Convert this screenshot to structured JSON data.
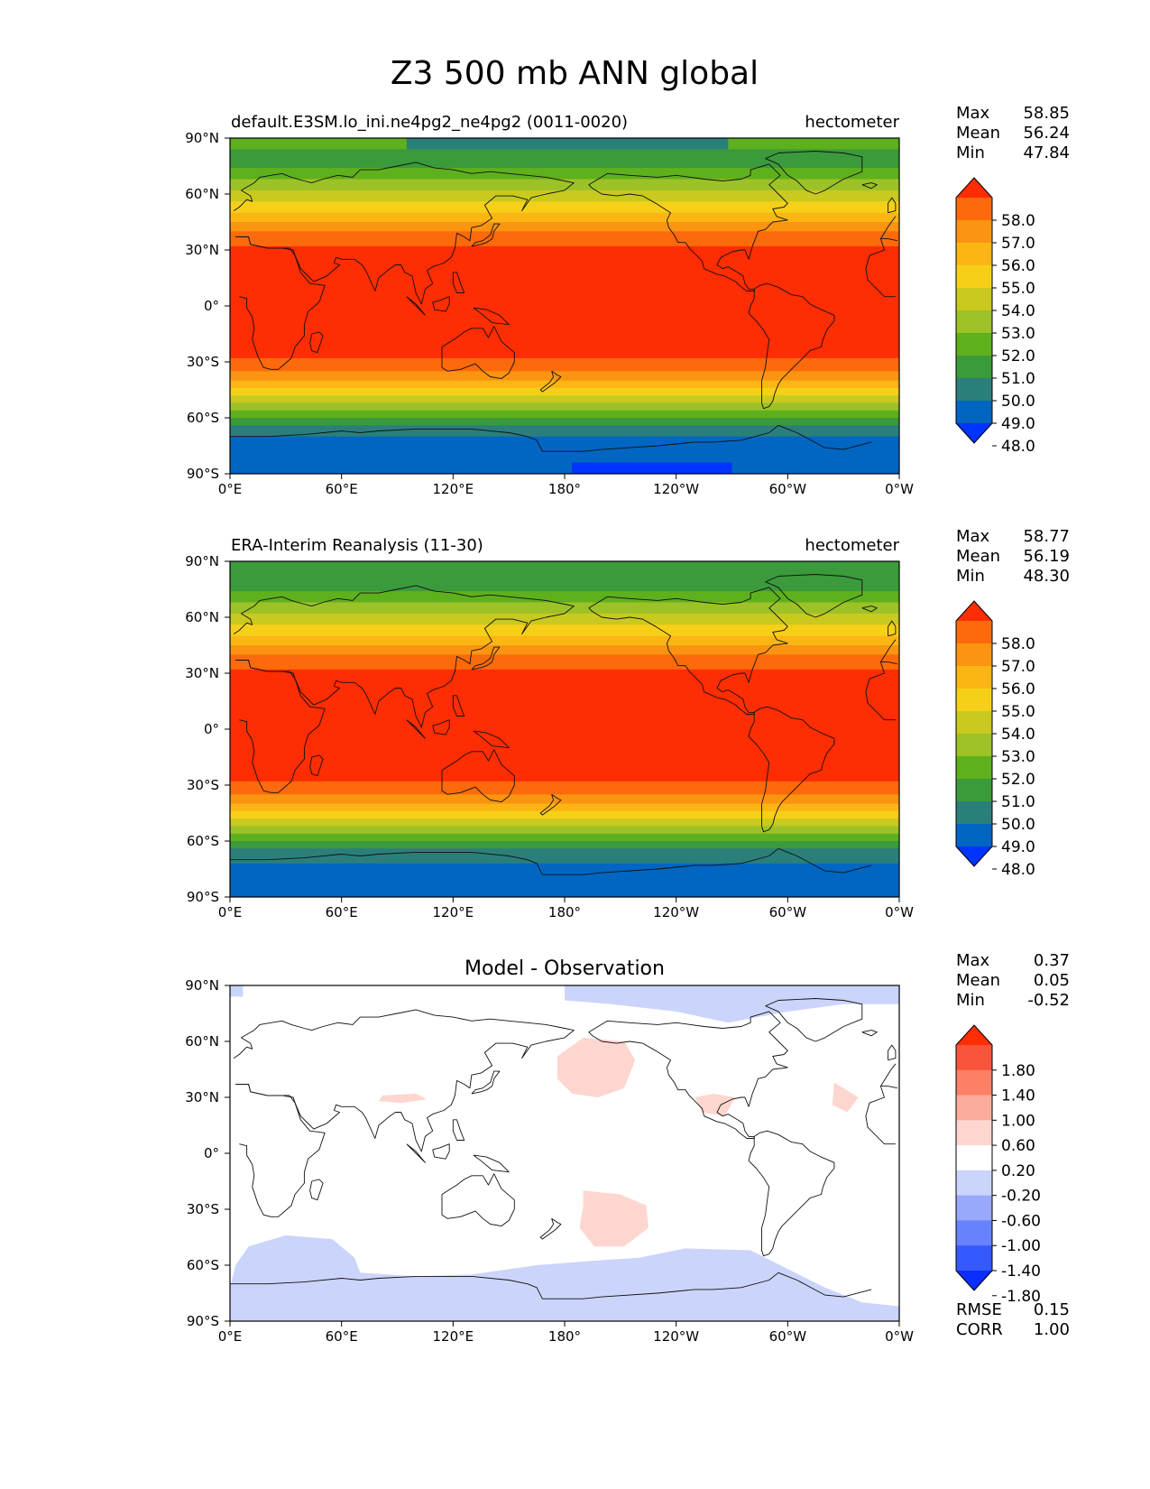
{
  "figure": {
    "title": "Z3 500 mb ANN global"
  },
  "colors": {
    "abs": [
      "#0033ff",
      "#0066c2",
      "#2b7f7b",
      "#3a9a3c",
      "#5fb01d",
      "#9cc227",
      "#c9c91f",
      "#f6d018",
      "#fcb614",
      "#fb9411",
      "#fc6a0b",
      "#ff2d03"
    ],
    "diff": [
      "#0a2eff",
      "#3659ff",
      "#6782fd",
      "#98a8fb",
      "#cbd4fa",
      "#ffffff",
      "#fdd6d0",
      "#fcac9d",
      "#fc8066",
      "#f8553c",
      "#ff2d03"
    ]
  },
  "chart_data": [
    {
      "type": "heatmap",
      "title": "default.E3SM.lo_ini.ne4pg2_ne4pg2 (0011-0020)",
      "units": "hectometer",
      "stats": {
        "labels": [
          "Max",
          "Mean",
          "Min"
        ],
        "values": [
          "58.85",
          "56.24",
          "47.84"
        ]
      },
      "colorbar_levels": [
        "58.0",
        "57.0",
        "56.0",
        "55.0",
        "54.0",
        "53.0",
        "52.0",
        "51.0",
        "50.0",
        "49.0",
        "48.0"
      ],
      "x_ticks": [
        "0°E",
        "60°E",
        "120°E",
        "180°",
        "120°W",
        "60°W",
        "0°W"
      ],
      "y_ticks": [
        "90°N",
        "60°N",
        "30°N",
        "0°",
        "30°S",
        "60°S",
        "90°S"
      ],
      "xlim": [
        0,
        360
      ],
      "ylim": [
        -90,
        90
      ],
      "bands": [
        {
          "lat_top": 90,
          "lat_bot": 84,
          "level": 4,
          "note": "teal 100E-90W"
        },
        {
          "lat_top": 84,
          "lat_bot": 74,
          "level": 3
        },
        {
          "lat_top": 74,
          "lat_bot": 68,
          "level": 4
        },
        {
          "lat_top": 68,
          "lat_bot": 62,
          "level": 5
        },
        {
          "lat_top": 62,
          "lat_bot": 56,
          "level": 6
        },
        {
          "lat_top": 56,
          "lat_bot": 50,
          "level": 7
        },
        {
          "lat_top": 50,
          "lat_bot": 45,
          "level": 8
        },
        {
          "lat_top": 45,
          "lat_bot": 40,
          "level": 9
        },
        {
          "lat_top": 40,
          "lat_bot": 32,
          "level": 10
        },
        {
          "lat_top": 32,
          "lat_bot": -28,
          "level": 11
        },
        {
          "lat_top": -28,
          "lat_bot": -35,
          "level": 10
        },
        {
          "lat_top": -35,
          "lat_bot": -40,
          "level": 9
        },
        {
          "lat_top": -40,
          "lat_bot": -44,
          "level": 8
        },
        {
          "lat_top": -44,
          "lat_bot": -48,
          "level": 7
        },
        {
          "lat_top": -48,
          "lat_bot": -52,
          "level": 6
        },
        {
          "lat_top": -52,
          "lat_bot": -56,
          "level": 5
        },
        {
          "lat_top": -56,
          "lat_bot": -60,
          "level": 4
        },
        {
          "lat_top": -60,
          "lat_bot": -64,
          "level": 3
        },
        {
          "lat_top": -64,
          "lat_bot": -70,
          "level": 2
        },
        {
          "lat_top": -70,
          "lat_bot": -90,
          "level": 1
        }
      ],
      "patches": [
        {
          "lon0": 95,
          "lon1": 268,
          "lat0": 84,
          "lat1": 90,
          "level": 2
        },
        {
          "lon0": 184,
          "lon1": 270,
          "lat0": -90,
          "lat1": -84,
          "level": 0
        }
      ]
    },
    {
      "type": "heatmap",
      "title": "ERA-Interim Reanalysis (11-30)",
      "units": "hectometer",
      "stats": {
        "labels": [
          "Max",
          "Mean",
          "Min"
        ],
        "values": [
          "58.77",
          "56.19",
          "48.30"
        ]
      },
      "colorbar_levels": [
        "58.0",
        "57.0",
        "56.0",
        "55.0",
        "54.0",
        "53.0",
        "52.0",
        "51.0",
        "50.0",
        "49.0",
        "48.0"
      ],
      "x_ticks": [
        "0°E",
        "60°E",
        "120°E",
        "180°",
        "120°W",
        "60°W",
        "0°W"
      ],
      "y_ticks": [
        "90°N",
        "60°N",
        "30°N",
        "0°",
        "30°S",
        "60°S",
        "90°S"
      ],
      "xlim": [
        0,
        360
      ],
      "ylim": [
        -90,
        90
      ],
      "bands": [
        {
          "lat_top": 90,
          "lat_bot": 82,
          "level": 3
        },
        {
          "lat_top": 82,
          "lat_bot": 74,
          "level": 3
        },
        {
          "lat_top": 74,
          "lat_bot": 68,
          "level": 4
        },
        {
          "lat_top": 68,
          "lat_bot": 62,
          "level": 5
        },
        {
          "lat_top": 62,
          "lat_bot": 56,
          "level": 6
        },
        {
          "lat_top": 56,
          "lat_bot": 50,
          "level": 7
        },
        {
          "lat_top": 50,
          "lat_bot": 45,
          "level": 8
        },
        {
          "lat_top": 45,
          "lat_bot": 40,
          "level": 9
        },
        {
          "lat_top": 40,
          "lat_bot": 32,
          "level": 10
        },
        {
          "lat_top": 32,
          "lat_bot": -28,
          "level": 11
        },
        {
          "lat_top": -28,
          "lat_bot": -35,
          "level": 10
        },
        {
          "lat_top": -35,
          "lat_bot": -40,
          "level": 9
        },
        {
          "lat_top": -40,
          "lat_bot": -44,
          "level": 8
        },
        {
          "lat_top": -44,
          "lat_bot": -48,
          "level": 7
        },
        {
          "lat_top": -48,
          "lat_bot": -52,
          "level": 6
        },
        {
          "lat_top": -52,
          "lat_bot": -56,
          "level": 5
        },
        {
          "lat_top": -56,
          "lat_bot": -60,
          "level": 4
        },
        {
          "lat_top": -60,
          "lat_bot": -64,
          "level": 3
        },
        {
          "lat_top": -64,
          "lat_bot": -72,
          "level": 2
        },
        {
          "lat_top": -72,
          "lat_bot": -90,
          "level": 1
        }
      ],
      "patches": []
    },
    {
      "type": "heatmap",
      "title": "Model - Observation",
      "units": "",
      "stats": {
        "labels": [
          "Max",
          "Mean",
          "Min"
        ],
        "values": [
          "0.37",
          "0.05",
          "-0.52"
        ]
      },
      "colorbar_levels": [
        "1.80",
        "1.40",
        "1.00",
        "0.60",
        "0.20",
        "-0.20",
        "-0.60",
        "-1.00",
        "-1.40",
        "-1.80"
      ],
      "x_ticks": [
        "0°E",
        "60°E",
        "120°E",
        "180°",
        "120°W",
        "60°W",
        "0°W"
      ],
      "y_ticks": [
        "90°N",
        "60°N",
        "30°N",
        "0°",
        "30°S",
        "60°S",
        "90°S"
      ],
      "xlim": [
        0,
        360
      ],
      "ylim": [
        -90,
        90
      ],
      "extra_stats": {
        "labels": [
          "RMSE",
          "CORR"
        ],
        "values": [
          "0.15",
          "1.00"
        ]
      },
      "background_level": 5,
      "blobs": [
        {
          "level": 4,
          "pts": [
            [
              180,
              90
            ],
            [
              360,
              90
            ],
            [
              360,
              80
            ],
            [
              330,
              80
            ],
            [
              300,
              76
            ],
            [
              268,
              70
            ],
            [
              240,
              76
            ],
            [
              205,
              80
            ],
            [
              180,
              82
            ]
          ]
        },
        {
          "level": 4,
          "pts": [
            [
              0,
              90
            ],
            [
              7,
              90
            ],
            [
              7,
              84
            ],
            [
              0,
              84
            ]
          ]
        },
        {
          "level": 4,
          "pts": [
            [
              0,
              -90
            ],
            [
              360,
              -90
            ],
            [
              360,
              -82
            ],
            [
              340,
              -80
            ],
            [
              320,
              -72
            ],
            [
              300,
              -62
            ],
            [
              280,
              -52
            ],
            [
              245,
              -51
            ],
            [
              220,
              -56
            ],
            [
              190,
              -58
            ],
            [
              165,
              -60
            ],
            [
              130,
              -65
            ],
            [
              100,
              -66
            ],
            [
              70,
              -64
            ],
            [
              67,
              -56
            ],
            [
              55,
              -46
            ],
            [
              30,
              -44
            ],
            [
              10,
              -50
            ],
            [
              3,
              -60
            ],
            [
              0,
              -72
            ]
          ]
        },
        {
          "level": 6,
          "pts": [
            [
              176,
              52
            ],
            [
              190,
              62
            ],
            [
              212,
              60
            ],
            [
              218,
              50
            ],
            [
              212,
              35
            ],
            [
              198,
              30
            ],
            [
              184,
              32
            ],
            [
              176,
              40
            ]
          ]
        },
        {
          "level": 6,
          "pts": [
            [
              190,
              -20
            ],
            [
              210,
              -22
            ],
            [
              224,
              -28
            ],
            [
              225,
              -40
            ],
            [
              212,
              -50
            ],
            [
              196,
              -50
            ],
            [
              188,
              -40
            ],
            [
              190,
              -28
            ]
          ]
        },
        {
          "level": 6,
          "pts": [
            [
              82,
              31
            ],
            [
              100,
              32
            ],
            [
              106,
              29
            ],
            [
              92,
              27
            ],
            [
              80,
              28
            ]
          ]
        },
        {
          "level": 6,
          "pts": [
            [
              250,
              30
            ],
            [
              260,
              32
            ],
            [
              272,
              30
            ],
            [
              266,
              20
            ],
            [
              254,
              22
            ]
          ]
        },
        {
          "level": 6,
          "pts": [
            [
              325,
              38
            ],
            [
              338,
              30
            ],
            [
              332,
              22
            ],
            [
              324,
              26
            ]
          ]
        }
      ]
    }
  ]
}
